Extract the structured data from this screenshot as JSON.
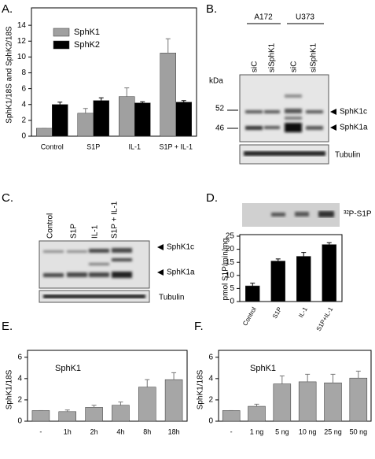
{
  "panel_labels": [
    "A.",
    "B.",
    "C.",
    "D.",
    "E.",
    "F."
  ],
  "chart_data": [
    {
      "type": "bar",
      "categories": [
        "Control",
        "S1P",
        "IL-1",
        "S1P + IL-1"
      ],
      "y_label": "SphK1/18S and SphK2/18S",
      "series": [
        {
          "name": "SphK1",
          "color": "#a0a0a0",
          "values": [
            1,
            2.9,
            5,
            10.5
          ],
          "errors": [
            0,
            0.6,
            1.1,
            1.8
          ]
        },
        {
          "name": "SphK2",
          "color": "#000000",
          "values": [
            4,
            4.5,
            4.2,
            4.3
          ],
          "errors": [
            0.3,
            0.35,
            0.15,
            0.2
          ]
        }
      ],
      "ylim": [
        0,
        16
      ],
      "yticks": [
        0,
        2,
        4,
        6,
        8,
        10,
        12,
        14
      ],
      "legend": "upper-left"
    },
    {
      "type": "bar",
      "categories": [
        "Control",
        "S1P",
        "IL-1",
        "S1P+IL-1"
      ],
      "y_label": "pmol S1P/min/mg",
      "color": "#000000",
      "values": [
        6,
        15.5,
        17.3,
        21.8
      ],
      "errors": [
        1,
        0.8,
        1.5,
        0.7
      ],
      "ylim": [
        0,
        25
      ],
      "yticks": [
        0,
        5,
        10,
        15,
        20,
        25
      ]
    },
    {
      "type": "bar",
      "title": "SphK1",
      "categories": [
        "-",
        "1h",
        "2h",
        "4h",
        "8h",
        "18h"
      ],
      "y_label": "SphK1/18S",
      "color": "#a6a6a6",
      "values": [
        1,
        0.9,
        1.3,
        1.5,
        3.2,
        3.9
      ],
      "errors": [
        0,
        0.15,
        0.2,
        0.3,
        0.7,
        0.65
      ],
      "ylim": [
        0,
        6.5
      ],
      "yticks": [
        0,
        2,
        4,
        6
      ]
    },
    {
      "type": "bar",
      "title": "SphK1",
      "categories": [
        "-",
        "1 ng",
        "5 ng",
        "10 ng",
        "25 ng",
        "50 ng"
      ],
      "y_label": "SphK1/18S",
      "color": "#a6a6a6",
      "values": [
        1,
        1.4,
        3.5,
        3.7,
        3.6,
        4.05
      ],
      "errors": [
        0,
        0.2,
        0.75,
        0.7,
        0.8,
        0.65
      ],
      "ylim": [
        0,
        6.5
      ],
      "yticks": [
        0,
        2,
        4,
        6
      ]
    }
  ],
  "blot_b": {
    "groups": [
      "A172",
      "U373"
    ],
    "lanes": [
      "siC",
      "siSphK1",
      "siC",
      "siSphK1"
    ],
    "unit": "kDa",
    "markers": [
      "52",
      "46"
    ],
    "bands": [
      "SphK1c",
      "SphK1a"
    ],
    "loading": "Tubulin"
  },
  "blot_c": {
    "lanes": [
      "Control",
      "S1P",
      "IL-1",
      "S1P + IL-1"
    ],
    "bands": [
      "SphK1c",
      "SphK1a"
    ],
    "loading": "Tubulin"
  },
  "blot_d": {
    "label": "³²P-S1P"
  }
}
